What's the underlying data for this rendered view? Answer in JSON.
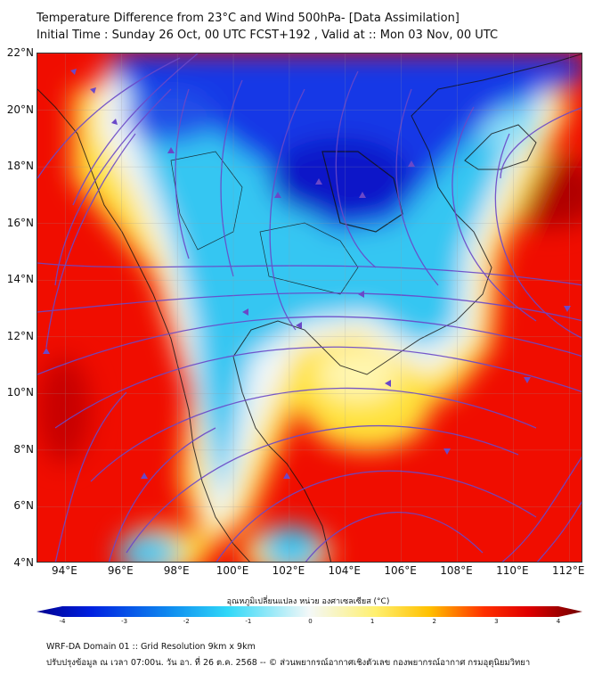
{
  "header": {
    "title": "Temperature Difference from 23°C and Wind 500hPa- [Data Assimilation]",
    "subtitle": "Initial Time : Sunday 26 Oct, 00 UTC FCST+192 , Valid at ::  Mon 03 Nov, 00 UTC"
  },
  "map": {
    "lat_range": [
      4,
      22
    ],
    "lon_range": [
      93,
      112.5
    ],
    "lat_labels": [
      "22°N",
      "20°N",
      "18°N",
      "16°N",
      "14°N",
      "12°N",
      "10°N",
      "8°N",
      "6°N",
      "4°N"
    ],
    "lat_values": [
      22,
      20,
      18,
      16,
      14,
      12,
      10,
      8,
      6,
      4
    ],
    "lon_labels": [
      "94°E",
      "96°E",
      "98°E",
      "100°E",
      "102°E",
      "104°E",
      "106°E",
      "108°E",
      "110°E",
      "112°E"
    ],
    "lon_values": [
      94,
      96,
      98,
      100,
      102,
      104,
      106,
      108,
      110,
      112
    ],
    "colors": {
      "warm": "#f00d00",
      "hot": "#a00000",
      "yellow": "#ffe23a",
      "white": "#f2f8fa",
      "cyan": "#34c6f2",
      "blue": "#1030e0",
      "deep_blue": "#0818c8",
      "streamline": "#6a48c8"
    }
  },
  "colorbar": {
    "title": "อุณหภูมิเปลี่ยนแปลง หน่วย องศาเซลเซียส (°C)",
    "ticks": [
      "-4",
      "-3",
      "-2",
      "-1",
      "0",
      "1",
      "2",
      "3",
      "4"
    ],
    "tick_values": [
      -4,
      -3,
      -2,
      -1,
      0,
      1,
      2,
      3,
      4
    ],
    "range": [
      -4,
      4
    ]
  },
  "footer": {
    "line1": "WRF-DA Domain 01 :: Grid Resolution 9km x 9km",
    "line2": "ปรับปรุงข้อมูล ณ เวลา 07:00น. วัน อา. ที่ 26 ต.ค. 2568 -- © ส่วนพยากรณ์อากาศเชิงตัวเลข กองพยากรณ์อากาศ กรมอุตุนิยมวิทยา"
  }
}
